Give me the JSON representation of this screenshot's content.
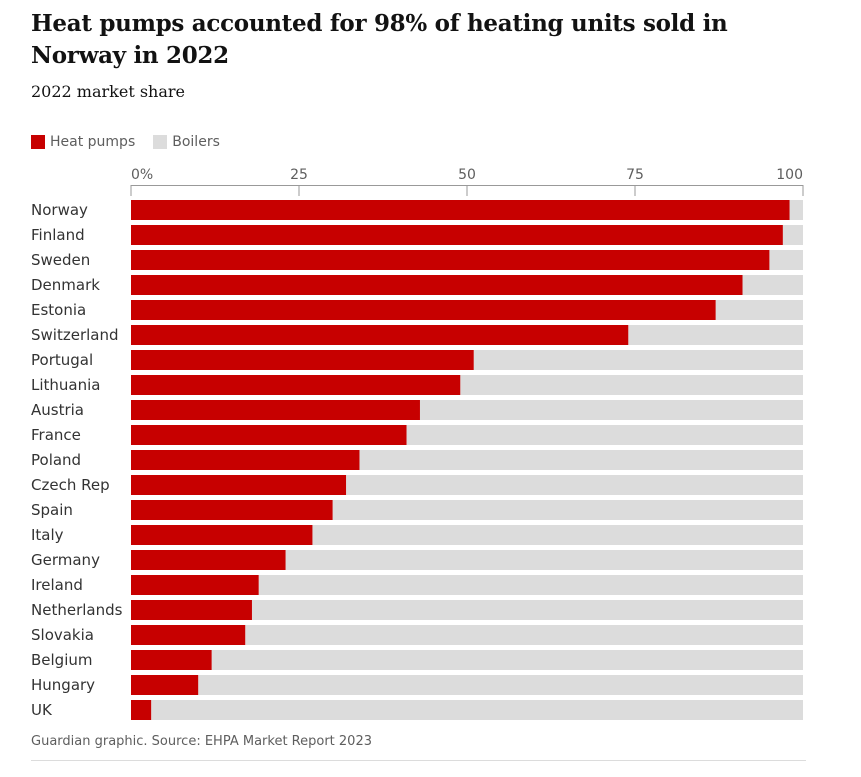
{
  "header": {
    "title": "Heat pumps accounted for 98% of heating units sold in Norway in 2022",
    "subtitle": "2022 market share"
  },
  "legend": {
    "items": [
      {
        "label": "Heat pumps",
        "color": "#c70000"
      },
      {
        "label": "Boilers",
        "color": "#dcdcdc"
      }
    ]
  },
  "footer": {
    "source": "Guardian graphic. Source: EHPA Market Report 2023"
  },
  "chart_data": {
    "type": "bar",
    "orientation": "horizontal",
    "stacked": true,
    "xlim": [
      0,
      100
    ],
    "ticks": [
      0,
      25,
      50,
      75,
      100
    ],
    "tick_labels": [
      "0%",
      "25",
      "50",
      "75",
      "100"
    ],
    "categories": [
      "Norway",
      "Finland",
      "Sweden",
      "Denmark",
      "Estonia",
      "Switzerland",
      "Portugal",
      "Lithuania",
      "Austria",
      "France",
      "Poland",
      "Czech Rep",
      "Spain",
      "Italy",
      "Germany",
      "Ireland",
      "Netherlands",
      "Slovakia",
      "Belgium",
      "Hungary",
      "UK"
    ],
    "series": [
      {
        "name": "Heat pumps",
        "color": "#c70000",
        "values": [
          98,
          97,
          95,
          91,
          87,
          74,
          51,
          49,
          43,
          41,
          34,
          32,
          30,
          27,
          23,
          19,
          18,
          17,
          12,
          10,
          3
        ]
      },
      {
        "name": "Boilers",
        "color": "#dcdcdc",
        "values": [
          2,
          3,
          5,
          9,
          13,
          26,
          49,
          51,
          57,
          59,
          66,
          68,
          70,
          73,
          77,
          81,
          82,
          83,
          88,
          90,
          97
        ]
      }
    ],
    "legend_position": "top-left",
    "grid": false
  }
}
